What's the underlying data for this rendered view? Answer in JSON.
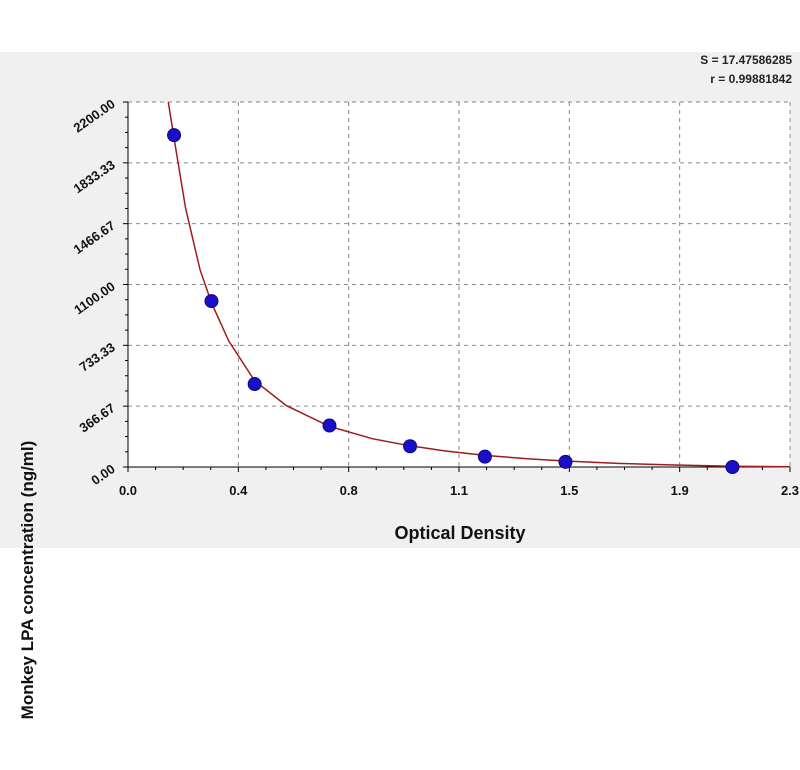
{
  "chart_data": {
    "type": "scatter",
    "xlabel": "Optical Density",
    "ylabel": "Monkey LPA concentration (ng/ml)",
    "xlim": [
      0.0,
      2.3
    ],
    "ylim": [
      0.0,
      2200.0
    ],
    "x_ticks": [
      "0.0",
      "0.4",
      "0.8",
      "1.1",
      "1.5",
      "1.9",
      "2.3"
    ],
    "y_ticks": [
      "0.00",
      "366.67",
      "733.33",
      "1100.00",
      "1466.67",
      "1833.33",
      "2200.00"
    ],
    "grid": true,
    "series": [
      {
        "points": [
          {
            "x": 0.16,
            "y": 2000
          },
          {
            "x": 0.29,
            "y": 1000
          },
          {
            "x": 0.44,
            "y": 500
          },
          {
            "x": 0.7,
            "y": 250
          },
          {
            "x": 0.98,
            "y": 125
          },
          {
            "x": 1.24,
            "y": 62.5
          },
          {
            "x": 1.52,
            "y": 31.25
          },
          {
            "x": 2.1,
            "y": 0
          }
        ],
        "marker_color": "#1a0fc8"
      }
    ],
    "fit_curve": {
      "color": "#a01c1c",
      "points": [
        {
          "x": 0.14,
          "y": 2200
        },
        {
          "x": 0.16,
          "y": 1980
        },
        {
          "x": 0.2,
          "y": 1560
        },
        {
          "x": 0.25,
          "y": 1190
        },
        {
          "x": 0.29,
          "y": 990
        },
        {
          "x": 0.35,
          "y": 760
        },
        {
          "x": 0.44,
          "y": 520
        },
        {
          "x": 0.55,
          "y": 370
        },
        {
          "x": 0.7,
          "y": 245
        },
        {
          "x": 0.85,
          "y": 170
        },
        {
          "x": 0.98,
          "y": 128
        },
        {
          "x": 1.1,
          "y": 97
        },
        {
          "x": 1.24,
          "y": 70
        },
        {
          "x": 1.4,
          "y": 48
        },
        {
          "x": 1.52,
          "y": 36
        },
        {
          "x": 1.7,
          "y": 22
        },
        {
          "x": 1.9,
          "y": 12
        },
        {
          "x": 2.1,
          "y": 5
        },
        {
          "x": 2.3,
          "y": 1
        }
      ]
    },
    "stats": {
      "s": "S = 17.47586285",
      "r": "r = 0.99881842"
    }
  }
}
